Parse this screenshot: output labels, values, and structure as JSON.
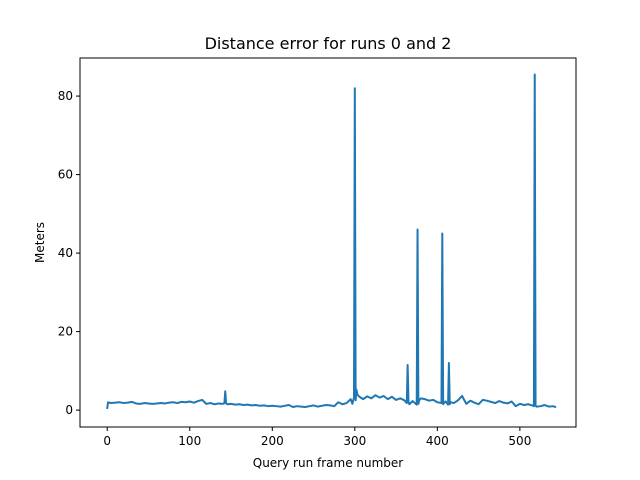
{
  "chart_data": {
    "type": "line",
    "title": "Distance error for runs 0 and 2",
    "xlabel": "Query run frame number",
    "ylabel": "Meters",
    "xlim": [
      -33,
      568
    ],
    "ylim": [
      -4.3,
      89.7
    ],
    "xticks": [
      0,
      100,
      200,
      300,
      400,
      500
    ],
    "yticks": [
      0,
      20,
      40,
      60,
      80
    ],
    "grid": false,
    "color": "#1f77b4",
    "series": [
      {
        "x": [
          0,
          1,
          2,
          5,
          10,
          15,
          20,
          25,
          30,
          35,
          40,
          45,
          50,
          55,
          60,
          65,
          70,
          75,
          80,
          85,
          90,
          95,
          100,
          105,
          110,
          115,
          120,
          125,
          130,
          135,
          140,
          142,
          143,
          144,
          146,
          150,
          155,
          160,
          165,
          170,
          175,
          180,
          185,
          190,
          195,
          200,
          205,
          210,
          215,
          220,
          225,
          230,
          235,
          240,
          245,
          250,
          255,
          260,
          265,
          270,
          275,
          280,
          285,
          290,
          295,
          297,
          298,
          299,
          300,
          301,
          302,
          303,
          305,
          310,
          315,
          320,
          325,
          330,
          335,
          340,
          345,
          350,
          355,
          360,
          363,
          364,
          365,
          366,
          370,
          375,
          376,
          377,
          378,
          380,
          385,
          390,
          395,
          400,
          405,
          406,
          407,
          408,
          410,
          413,
          414,
          415,
          416,
          420,
          425,
          430,
          435,
          440,
          445,
          450,
          455,
          460,
          465,
          470,
          475,
          480,
          485,
          490,
          495,
          500,
          505,
          510,
          515,
          517,
          518,
          519,
          520,
          525,
          530,
          535,
          540,
          543
        ],
        "y": [
          0.5,
          2.0,
          1.9,
          1.8,
          1.9,
          2.0,
          1.8,
          1.9,
          2.1,
          1.7,
          1.6,
          1.8,
          1.7,
          1.6,
          1.7,
          1.8,
          1.7,
          1.9,
          2.0,
          1.8,
          2.1,
          2.0,
          2.2,
          1.9,
          2.3,
          2.6,
          1.6,
          1.8,
          1.5,
          1.7,
          1.6,
          1.8,
          4.8,
          1.7,
          1.5,
          1.6,
          1.4,
          1.5,
          1.3,
          1.4,
          1.2,
          1.3,
          1.1,
          1.2,
          1.0,
          1.1,
          1.0,
          0.9,
          1.1,
          1.3,
          0.8,
          1.0,
          0.9,
          0.8,
          1.0,
          1.2,
          0.9,
          1.1,
          1.3,
          1.2,
          1.0,
          2.0,
          1.5,
          1.8,
          2.8,
          1.6,
          2.4,
          3.2,
          82.0,
          2.5,
          5.2,
          4.0,
          3.5,
          2.8,
          3.5,
          3.0,
          3.8,
          3.2,
          3.6,
          2.8,
          3.4,
          2.6,
          3.0,
          2.5,
          1.8,
          11.5,
          2.2,
          1.5,
          2.3,
          1.4,
          46.0,
          1.6,
          2.5,
          3.0,
          2.8,
          2.4,
          2.6,
          2.0,
          1.8,
          45.0,
          1.5,
          1.8,
          2.2,
          1.4,
          12.0,
          1.5,
          2.0,
          1.8,
          2.5,
          3.6,
          1.6,
          2.4,
          1.9,
          1.5,
          2.6,
          2.4,
          2.1,
          1.8,
          2.3,
          1.9,
          1.7,
          2.2,
          1.0,
          1.6,
          1.3,
          1.5,
          1.2,
          1.0,
          85.5,
          1.2,
          0.9,
          1.0,
          1.3,
          0.9,
          1.0,
          0.8
        ]
      }
    ]
  }
}
